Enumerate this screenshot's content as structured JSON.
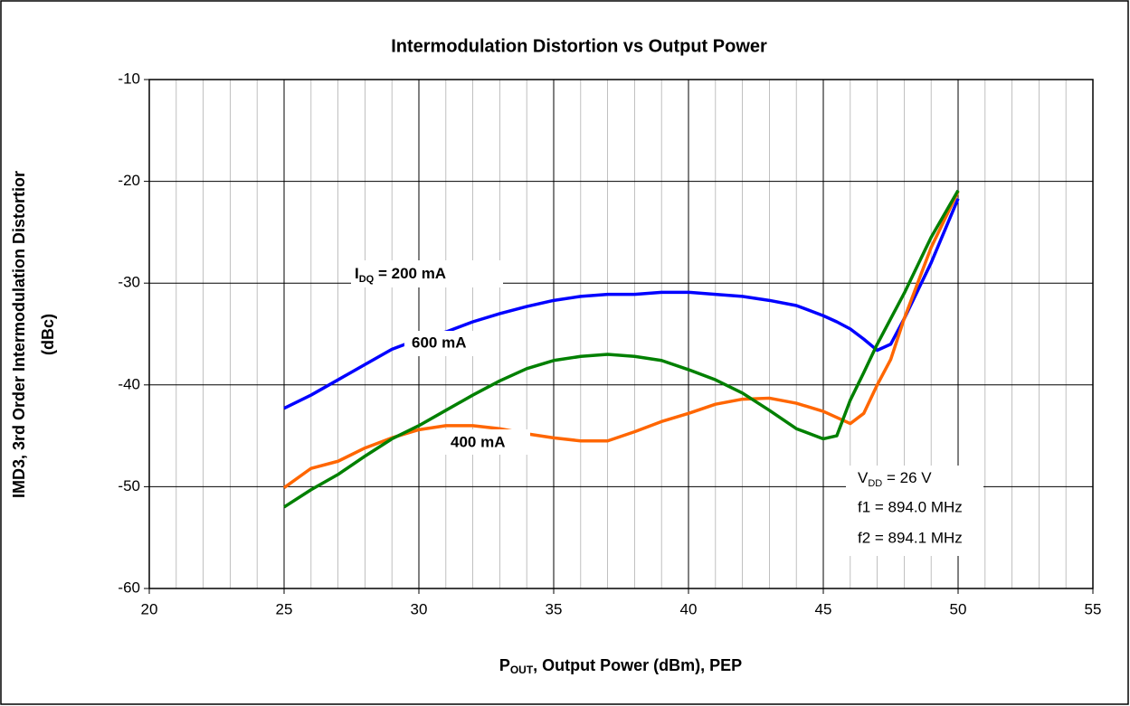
{
  "chart_data": {
    "type": "line",
    "title": "Intermodulation Distortion vs Output Power",
    "x_label": {
      "text": "P",
      "sub": "OUT",
      "rest": ", Output Power (dBm), PEP"
    },
    "y_label": [
      "IMD3, 3rd Order Intermodulation Distortior",
      "(dBc)"
    ],
    "x": [
      25,
      26,
      27,
      28,
      29,
      30,
      31,
      32,
      33,
      34,
      35,
      36,
      37,
      38,
      39,
      40,
      41,
      42,
      43,
      44,
      45,
      45.5,
      46,
      46.5,
      47,
      47.5,
      48,
      49,
      50
    ],
    "series": [
      {
        "name": "200 mA",
        "color": "#0000ff",
        "values": [
          -42.3,
          -41,
          -39.5,
          -38,
          -36.5,
          -35.5,
          -34.8,
          -33.8,
          -33,
          -32.3,
          -31.7,
          -31.3,
          -31.1,
          -31.1,
          -30.9,
          -30.9,
          -31.1,
          -31.3,
          -31.7,
          -32.2,
          -33.2,
          -33.8,
          -34.5,
          -35.5,
          -36.6,
          -36,
          -33.5,
          -28,
          -21.7
        ]
      },
      {
        "name": "400 mA",
        "color": "#ff6600",
        "values": [
          -50.1,
          -48.2,
          -47.5,
          -46.2,
          -45.2,
          -44.4,
          -44,
          -44,
          -44.3,
          -44.8,
          -45.2,
          -45.5,
          -45.5,
          -44.6,
          -43.6,
          -42.8,
          -41.9,
          -41.4,
          -41.3,
          -41.8,
          -42.6,
          -43.2,
          -43.8,
          -42.8,
          -40,
          -37.5,
          -33.5,
          -26.5,
          -21
        ]
      },
      {
        "name": "600 mA",
        "color": "#008000",
        "values": [
          -52,
          -50.3,
          -48.8,
          -47,
          -45.3,
          -44,
          -42.5,
          -41,
          -39.6,
          -38.4,
          -37.6,
          -37.2,
          -37,
          -37.2,
          -37.6,
          -38.5,
          -39.5,
          -40.8,
          -42.5,
          -44.3,
          -45.3,
          -45,
          -41.5,
          -38.8,
          -36,
          -33.5,
          -31,
          -25.5,
          -20.9
        ]
      }
    ],
    "annotations": [
      {
        "text": "I",
        "sub": "DQ",
        "rest": " = 200 mA"
      },
      "600 mA",
      "400 mA",
      {
        "text": "V",
        "sub": "DD",
        "rest": " = 26 V"
      },
      "f1 = 894.0 MHz",
      "f2 = 894.1 MHz"
    ],
    "xlim": [
      20,
      55
    ],
    "xticks": [
      20,
      25,
      30,
      35,
      40,
      45,
      50,
      55
    ],
    "ylim": [
      -60,
      -10
    ],
    "yticks": [
      -60,
      -50,
      -40,
      -30,
      -20,
      -10
    ],
    "grid": true
  }
}
